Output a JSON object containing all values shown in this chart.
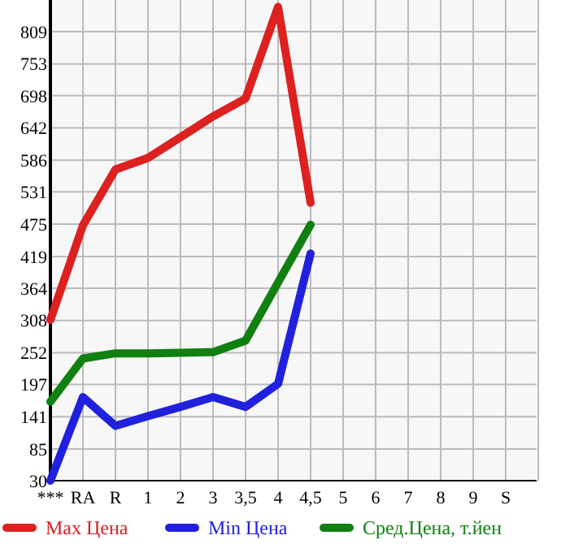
{
  "chart_data": {
    "type": "line",
    "categories": [
      "***",
      "RA",
      "R",
      "1",
      "2",
      "3",
      "3,5",
      "4",
      "4,5",
      "5",
      "6",
      "7",
      "8",
      "9",
      "S"
    ],
    "series": [
      {
        "name": "Max Цена",
        "color": "#dd2020",
        "values": [
          309,
          473,
          570,
          590,
          626,
          662,
          693,
          852,
          512,
          null,
          null,
          null,
          null,
          null,
          null
        ]
      },
      {
        "name": "Min Цена",
        "color": "#2020dd",
        "values": [
          30,
          175,
          125,
          142,
          158,
          175,
          158,
          198,
          424,
          null,
          null,
          null,
          null,
          null,
          null
        ]
      },
      {
        "name": "Сред.Цена, т.йен",
        "color": "#108010",
        "values": [
          167,
          242,
          251,
          251,
          252,
          253,
          273,
          374,
          474,
          null,
          null,
          null,
          null,
          null,
          null
        ]
      }
    ],
    "ylim": [
      30,
      864
    ],
    "yticks": [
      30,
      85,
      141,
      197,
      252,
      308,
      364,
      419,
      475,
      531,
      586,
      642,
      698,
      753,
      809
    ],
    "grid": true,
    "legend": "bottom",
    "line_style": "solid"
  }
}
